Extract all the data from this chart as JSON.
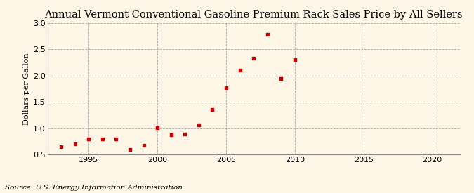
{
  "title": "Annual Vermont Conventional Gasoline Premium Rack Sales Price by All Sellers",
  "ylabel": "Dollars per Gallon",
  "source": "Source: U.S. Energy Information Administration",
  "years": [
    1993,
    1994,
    1995,
    1996,
    1997,
    1998,
    1999,
    2000,
    2001,
    2002,
    2003,
    2004,
    2005,
    2006,
    2007,
    2008,
    2009,
    2010
  ],
  "values": [
    0.65,
    0.7,
    0.79,
    0.8,
    0.79,
    0.6,
    0.68,
    1.01,
    0.88,
    0.89,
    1.06,
    1.36,
    1.77,
    2.11,
    2.33,
    2.78,
    1.95,
    2.3
  ],
  "marker_color": "#cc0000",
  "background_color": "#fdf5e6",
  "grid_color": "#aaaaaa",
  "title_fontsize": 10.5,
  "label_fontsize": 8,
  "tick_fontsize": 8,
  "source_fontsize": 7.5,
  "xlim": [
    1992,
    2022
  ],
  "ylim": [
    0.5,
    3.0
  ],
  "xticks": [
    1995,
    2000,
    2005,
    2010,
    2015,
    2020
  ],
  "yticks": [
    0.5,
    1.0,
    1.5,
    2.0,
    2.5,
    3.0
  ]
}
